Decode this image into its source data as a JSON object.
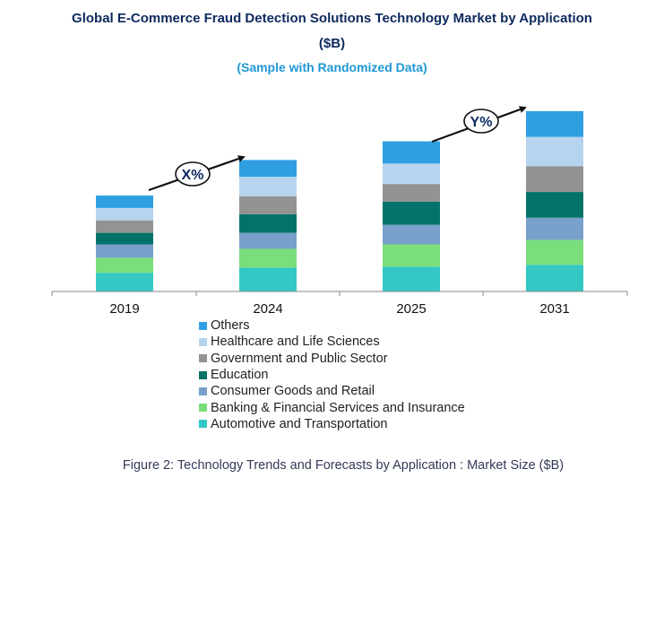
{
  "title": {
    "line1": "Global E-Commerce Fraud Detection Solutions  Technology Market by Application",
    "line2": "($B)"
  },
  "subtitle": "(Sample with Randomized Data)",
  "caption": "Figure 2: Technology  Trends  and Forecasts by Application : Market Size ($B)",
  "growth_labels": {
    "first": "X%",
    "second": "Y%"
  },
  "colors": {
    "Others": "#2f9fe2",
    "Healthcare and Life Sciences": "#b6d4ef",
    "Government and Public Sector": "#939393",
    "Education": "#03736a",
    "Consumer Goods and Retail": "#79a0cb",
    "Banking & Financial Services and Insurance": "#7ade7a",
    "Automotive and Transportation": "#33c8c4",
    "arrow": "#111111",
    "axis": "#888888"
  },
  "chart_data": {
    "type": "bar",
    "stacked": true,
    "categories": [
      "2019",
      "2024",
      "2025",
      "2031"
    ],
    "series": [
      {
        "name": "Automotive and Transportation",
        "values": [
          21,
          27,
          28,
          30
        ]
      },
      {
        "name": "Banking & Financial Services and Insurance",
        "values": [
          17,
          21,
          25,
          28
        ]
      },
      {
        "name": "Consumer Goods and Retail",
        "values": [
          15,
          18,
          22,
          25
        ]
      },
      {
        "name": "Education",
        "values": [
          13,
          21,
          26,
          29
        ]
      },
      {
        "name": "Government and Public Sector",
        "values": [
          14,
          20,
          20,
          29
        ]
      },
      {
        "name": "Healthcare and Life Sciences",
        "values": [
          14,
          22,
          23,
          33
        ]
      },
      {
        "name": "Others",
        "values": [
          14,
          19,
          25,
          29
        ]
      }
    ],
    "legend_order": [
      "Others",
      "Healthcare and Life Sciences",
      "Government and Public Sector",
      "Education",
      "Consumer Goods and Retail",
      "Banking & Financial Services and Insurance",
      "Automotive and Transportation"
    ],
    "ylim": [
      0,
      212
    ],
    "grid": false,
    "legend_position": "bottom"
  }
}
